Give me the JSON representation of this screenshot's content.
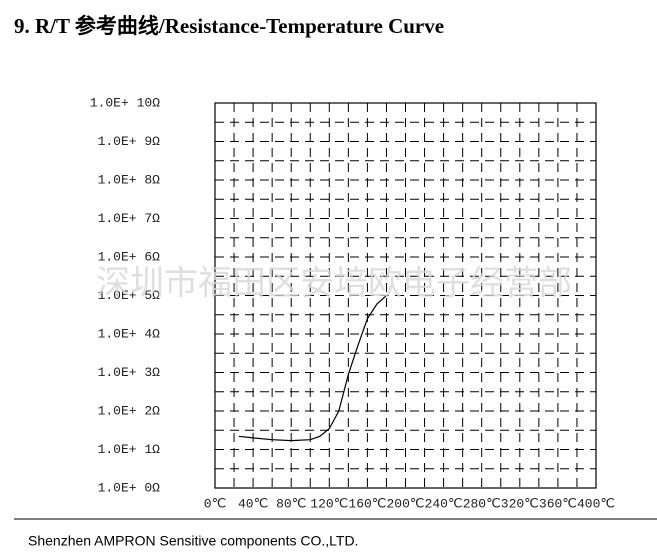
{
  "header": {
    "title": "9. R/T 参考曲线/Resistance-Temperature Curve"
  },
  "chart_data": {
    "type": "line",
    "x": [
      25,
      40,
      60,
      80,
      100,
      110,
      120,
      130,
      140,
      150,
      160,
      170,
      180
    ],
    "series": [
      {
        "color": "#000000",
        "values": [
          22,
          20,
          18,
          17,
          18,
          22,
          35,
          100,
          900,
          5000,
          25000,
          60000,
          100000
        ]
      }
    ],
    "xlim": [
      0,
      400
    ],
    "xticks": [
      {
        "value": 0,
        "label": "0℃"
      },
      {
        "value": 40,
        "label": "40℃"
      },
      {
        "value": 80,
        "label": "80℃"
      },
      {
        "value": 120,
        "label": "120℃"
      },
      {
        "value": 160,
        "label": "160℃"
      },
      {
        "value": 200,
        "label": "200℃"
      },
      {
        "value": 240,
        "label": "240℃"
      },
      {
        "value": 280,
        "label": "280℃"
      },
      {
        "value": 320,
        "label": "320℃"
      },
      {
        "value": 360,
        "label": "360℃"
      },
      {
        "value": 400,
        "label": "400℃"
      }
    ],
    "ylim": [
      1,
      10000000000
    ],
    "yticks": [
      {
        "value": 1,
        "label": "1.0E+ 0Ω"
      },
      {
        "value": 10,
        "label": "1.0E+ 1Ω"
      },
      {
        "value": 100,
        "label": "1.0E+ 2Ω"
      },
      {
        "value": 1000,
        "label": "1.0E+ 3Ω"
      },
      {
        "value": 10000,
        "label": "1.0E+ 4Ω"
      },
      {
        "value": 100000,
        "label": "1.0E+ 5Ω"
      },
      {
        "value": 1000000,
        "label": "1.0E+ 6Ω"
      },
      {
        "value": 10000000,
        "label": "1.0E+ 7Ω"
      },
      {
        "value": 100000000,
        "label": "1.0E+ 8Ω"
      },
      {
        "value": 1000000000,
        "label": "1.0E+ 9Ω"
      },
      {
        "value": 10000000000,
        "label": "1.0E+ 10Ω"
      }
    ],
    "log_scale": true,
    "grid": true,
    "grid_style": "dashed"
  },
  "watermark": "深圳市福田区安培欧电子经营部",
  "footer": "Shenzhen AMPRON Sensitive components CO.,LTD."
}
